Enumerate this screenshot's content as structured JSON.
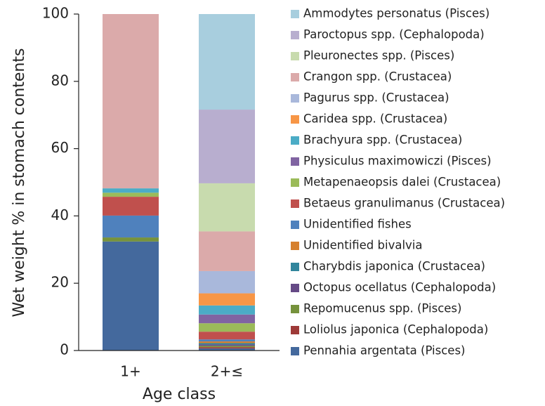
{
  "chart_data": {
    "type": "stacked_bar",
    "y_label": "Wet weight % in stomach contents",
    "x_label": "Age class",
    "categories": [
      "1+",
      "2+≤"
    ],
    "ylim": [
      0,
      100
    ],
    "yticks": [
      0,
      20,
      40,
      60,
      80,
      100
    ],
    "series": [
      {
        "name": "Pennahia argentata (Pisces)",
        "color": "#44699d",
        "values": [
          32.4,
          0.6
        ]
      },
      {
        "name": "Loliolus japonica (Cephalopoda)",
        "color": "#9e3a38",
        "values": [
          0,
          0.4
        ]
      },
      {
        "name": "Repomucenus spp. (Pisces)",
        "color": "#76923c",
        "values": [
          1.2,
          0.4
        ]
      },
      {
        "name": "Octopus ocellatus (Cephalopoda)",
        "color": "#654a86",
        "values": [
          0,
          0.4
        ]
      },
      {
        "name": "Charybdis japonica (Crustacea)",
        "color": "#31859c",
        "values": [
          0,
          0.4
        ]
      },
      {
        "name": "Unidentified bivalvia",
        "color": "#d6802e",
        "values": [
          0,
          0.5
        ]
      },
      {
        "name": "Unidentified fishes",
        "color": "#4f81bd",
        "values": [
          6.5,
          0.6
        ]
      },
      {
        "name": "Betaeus granulimanus (Crustacea)",
        "color": "#c0504d",
        "values": [
          5.6,
          2.3
        ]
      },
      {
        "name": "Metapenaeopsis dalei (Crustacea)",
        "color": "#9bbb59",
        "values": [
          1.2,
          2.5
        ]
      },
      {
        "name": "Physiculus maximowiczi (Pisces)",
        "color": "#8064a2",
        "values": [
          0,
          2.6
        ]
      },
      {
        "name": "Brachyura spp. (Crustacea)",
        "color": "#4bacc6",
        "values": [
          1.3,
          2.7
        ]
      },
      {
        "name": "Caridea spp. (Crustacea)",
        "color": "#f79646",
        "values": [
          0,
          3.6
        ]
      },
      {
        "name": "Pagurus spp. (Crustacea)",
        "color": "#a9b8db",
        "values": [
          0,
          6.6
        ]
      },
      {
        "name": "Crangon spp. (Crustacea)",
        "color": "#dbaaaa",
        "values": [
          51.8,
          11.8
        ]
      },
      {
        "name": "Pleuronectes spp. (Pisces)",
        "color": "#c8dbae",
        "values": [
          0,
          14.3
        ]
      },
      {
        "name": "Paroctopus spp. (Cephalopoda)",
        "color": "#b8aecf",
        "values": [
          0,
          21.9
        ]
      },
      {
        "name": "Ammodytes personatus (Pisces)",
        "color": "#a8cede",
        "values": [
          0,
          28.4
        ]
      }
    ]
  }
}
